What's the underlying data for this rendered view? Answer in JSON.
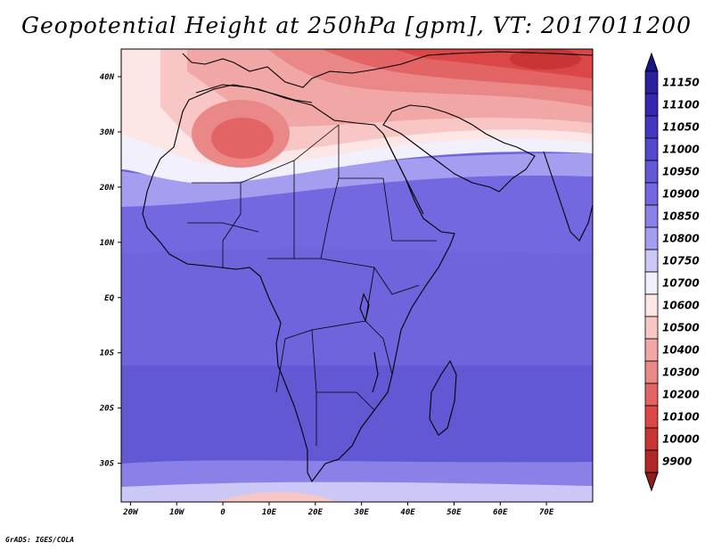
{
  "title": "Geopotential Height at 250hPa [gpm], VT: 2017011200",
  "footer": "GrADS: IGES/COLA",
  "map": {
    "variable": "Geopotential Height",
    "level": "250hPa",
    "units": "gpm",
    "valid_time": "2017011200",
    "lon_range": [
      -22,
      80
    ],
    "lat_range": [
      -37,
      45
    ],
    "lat_labels": [
      {
        "value": 40,
        "text": "40N"
      },
      {
        "value": 30,
        "text": "30N"
      },
      {
        "value": 20,
        "text": "20N"
      },
      {
        "value": 10,
        "text": "10N"
      },
      {
        "value": 0,
        "text": "EQ"
      },
      {
        "value": -10,
        "text": "10S"
      },
      {
        "value": -20,
        "text": "20S"
      },
      {
        "value": -30,
        "text": "30S"
      }
    ],
    "lon_labels": [
      {
        "value": -20,
        "text": "20W"
      },
      {
        "value": -10,
        "text": "10W"
      },
      {
        "value": 0,
        "text": "0"
      },
      {
        "value": 10,
        "text": "10E"
      },
      {
        "value": 20,
        "text": "20E"
      },
      {
        "value": 30,
        "text": "30E"
      },
      {
        "value": 40,
        "text": "40E"
      },
      {
        "value": 50,
        "text": "50E"
      },
      {
        "value": 60,
        "text": "60E"
      },
      {
        "value": 70,
        "text": "70E"
      }
    ]
  },
  "legend": {
    "levels": [
      {
        "label": "11150",
        "color": "#2a1f9c"
      },
      {
        "label": "11100",
        "color": "#3527b0"
      },
      {
        "label": "11050",
        "color": "#4337c2"
      },
      {
        "label": "11000",
        "color": "#5347cc"
      },
      {
        "label": "10950",
        "color": "#6258d6"
      },
      {
        "label": "10900",
        "color": "#7468e0"
      },
      {
        "label": "10850",
        "color": "#8a80e8"
      },
      {
        "label": "10800",
        "color": "#a59ef0"
      },
      {
        "label": "10750",
        "color": "#cbc7f7"
      },
      {
        "label": "10700",
        "color": "#f1f0fc"
      },
      {
        "label": "10600",
        "color": "#fde6e6"
      },
      {
        "label": "10500",
        "color": "#f9c6c6"
      },
      {
        "label": "10400",
        "color": "#f2a7a7"
      },
      {
        "label": "10300",
        "color": "#ea8787"
      },
      {
        "label": "10200",
        "color": "#e36464"
      },
      {
        "label": "10100",
        "color": "#dc4646"
      },
      {
        "label": "10000",
        "color": "#c93434"
      },
      {
        "label": "9900",
        "color": "#b02828"
      }
    ],
    "top_arrow_color": "#1a1488",
    "bottom_arrow_color": "#8e1d1d"
  }
}
